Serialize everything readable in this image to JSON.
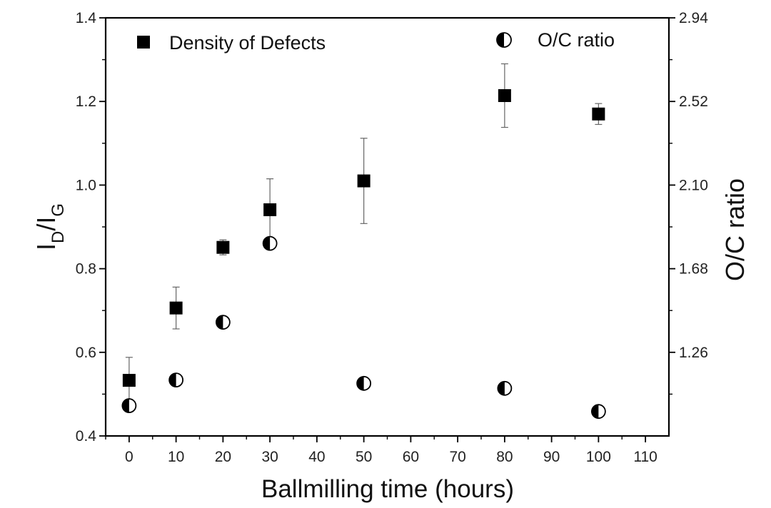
{
  "chart_data": {
    "type": "scatter",
    "xlabel": "Ballmilling time (hours)",
    "ylabel": {
      "main": "I",
      "sub1": "D",
      "slash": "/I",
      "sub2": "G"
    },
    "y2label": "O/C ratio",
    "xlim": [
      -5,
      115
    ],
    "ylim": [
      0.4,
      1.4
    ],
    "y2lim": [
      0.84,
      2.94
    ],
    "xticks": [
      "0",
      "10",
      "20",
      "30",
      "40",
      "50",
      "60",
      "70",
      "80",
      "90",
      "100",
      "110"
    ],
    "yticks": [
      "0.4",
      "0.6",
      "0.8",
      "1.0",
      "1.2",
      "1.4"
    ],
    "y2ticks": [
      "1.26",
      "1.68",
      "2.10",
      "2.52",
      "2.94"
    ],
    "legend_position": "top",
    "series": [
      {
        "name": "Density of Defects",
        "axis": "left",
        "marker": "square",
        "color": "#000000",
        "points": [
          {
            "x": 0,
            "y": 0.533,
            "err": 0.055
          },
          {
            "x": 10,
            "y": 0.706,
            "err": 0.05
          },
          {
            "x": 20,
            "y": 0.851,
            "err": 0.018
          },
          {
            "x": 30,
            "y": 0.941,
            "err": 0.074
          },
          {
            "x": 50,
            "y": 1.01,
            "err": 0.102
          },
          {
            "x": 80,
            "y": 1.214,
            "err": 0.076
          },
          {
            "x": 100,
            "y": 1.17,
            "err": 0.025
          }
        ]
      },
      {
        "name": "O/C ratio",
        "axis": "right",
        "marker": "half-filled-circle",
        "color": "#000000",
        "points": [
          {
            "x": 0,
            "y": 0.992
          },
          {
            "x": 10,
            "y": 1.121
          },
          {
            "x": 20,
            "y": 1.411
          },
          {
            "x": 30,
            "y": 1.807
          },
          {
            "x": 50,
            "y": 1.104
          },
          {
            "x": 80,
            "y": 1.079
          },
          {
            "x": 100,
            "y": 0.963
          }
        ]
      }
    ]
  }
}
